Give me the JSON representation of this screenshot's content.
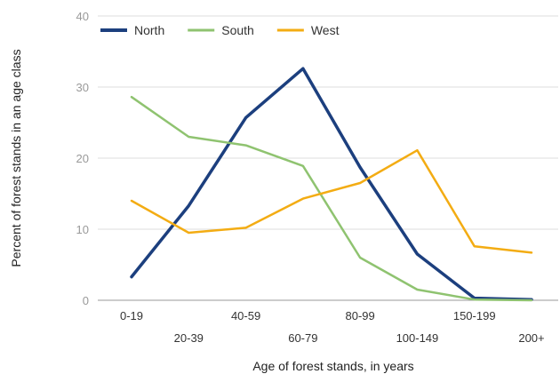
{
  "chart_data": {
    "type": "line",
    "title": "",
    "xlabel": "Age of forest stands, in years",
    "ylabel": "Percent of forest stands in an age class",
    "categories": [
      "0-19",
      "20-39",
      "40-59",
      "60-79",
      "80-99",
      "100-149",
      "150-199",
      "200+"
    ],
    "ylim": [
      0,
      40
    ],
    "yticks": [
      "0",
      "10",
      "20",
      "30",
      "40"
    ],
    "grid": true,
    "legend_position": "top-left",
    "series": [
      {
        "name": "North",
        "color": "#1c3f7e",
        "values": [
          3.3,
          13.3,
          25.7,
          32.6,
          18.7,
          6.5,
          0.3,
          0.1
        ]
      },
      {
        "name": "South",
        "color": "#8fc370",
        "values": [
          28.6,
          23.0,
          21.8,
          18.9,
          6.0,
          1.5,
          0.1,
          0.0
        ]
      },
      {
        "name": "West",
        "color": "#f3ac13",
        "values": [
          14.0,
          9.5,
          10.2,
          14.3,
          16.5,
          21.1,
          7.6,
          6.7
        ]
      }
    ]
  }
}
